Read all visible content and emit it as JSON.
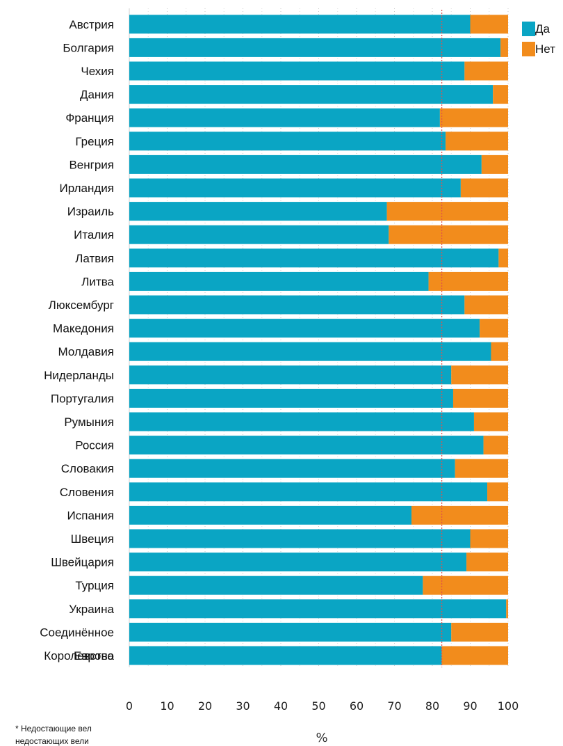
{
  "chart_data": {
    "type": "bar",
    "orientation": "horizontal",
    "stacked": true,
    "categories": [
      "Австрия",
      "Болгария",
      "Чехия",
      "Дания",
      "Франция",
      "Греция",
      "Венгрия",
      "Ирландия",
      "Израиль",
      "Италия",
      "Латвия",
      "Литва",
      "Люксембург",
      "Македония",
      "Молдавия",
      "Нидерланды",
      "Португалия",
      "Румыния",
      "Россия",
      "Словакия",
      "Словения",
      "Испания",
      "Швеция",
      "Швейцария",
      "Турция",
      "Украина",
      "Соединённое Королевство",
      "Европа"
    ],
    "category_lines": [
      [
        "Австрия"
      ],
      [
        "Болгария"
      ],
      [
        "Чехия"
      ],
      [
        "Дания"
      ],
      [
        "Франция"
      ],
      [
        "Греция"
      ],
      [
        "Венгрия"
      ],
      [
        "Ирландия"
      ],
      [
        "Израиль"
      ],
      [
        "Италия"
      ],
      [
        "Латвия"
      ],
      [
        "Литва"
      ],
      [
        "Люксембург"
      ],
      [
        "Македония"
      ],
      [
        "Молдавия"
      ],
      [
        "Нидерланды"
      ],
      [
        "Португалия"
      ],
      [
        "Румыния"
      ],
      [
        "Россия"
      ],
      [
        "Словакия"
      ],
      [
        "Словения"
      ],
      [
        "Испания"
      ],
      [
        "Швеция"
      ],
      [
        "Швейцария"
      ],
      [
        "Турция"
      ],
      [
        "Украина"
      ],
      [
        "Соединённое",
        "Королевство"
      ],
      [
        "Европа"
      ]
    ],
    "series": [
      {
        "name": "Да",
        "color": "#0aa5c4",
        "values": [
          90,
          98,
          88.5,
          96,
          82,
          83.5,
          93,
          87.5,
          68,
          68.5,
          97.5,
          79,
          88.5,
          92.5,
          95.5,
          85,
          85.5,
          91,
          93.5,
          86,
          94.5,
          74.5,
          90,
          89,
          77.5,
          99.5,
          85,
          82.5
        ]
      },
      {
        "name": "Нет",
        "color": "#f28c1c",
        "values": [
          10,
          2,
          11.5,
          4,
          18,
          16.5,
          7,
          12.5,
          32,
          31.5,
          2.5,
          21,
          11.5,
          7.5,
          4.5,
          15,
          14.5,
          9,
          6.5,
          14,
          5.5,
          25.5,
          10,
          11,
          22.5,
          0.5,
          15,
          17.5
        ]
      }
    ],
    "xlim": [
      0,
      100
    ],
    "x_ticks": [
      "0",
      "10",
      "20",
      "30",
      "40",
      "50",
      "60",
      "70",
      "80",
      "90",
      "100"
    ],
    "xlabel": "%",
    "reference_line": {
      "value": 82.5,
      "color": "#e0524a",
      "style": "dashed"
    },
    "grid": "vertical dotted",
    "legend_position": "top-right"
  },
  "footnote": {
    "line1": "* Недостающие вел",
    "line2": "недостающих вели"
  }
}
